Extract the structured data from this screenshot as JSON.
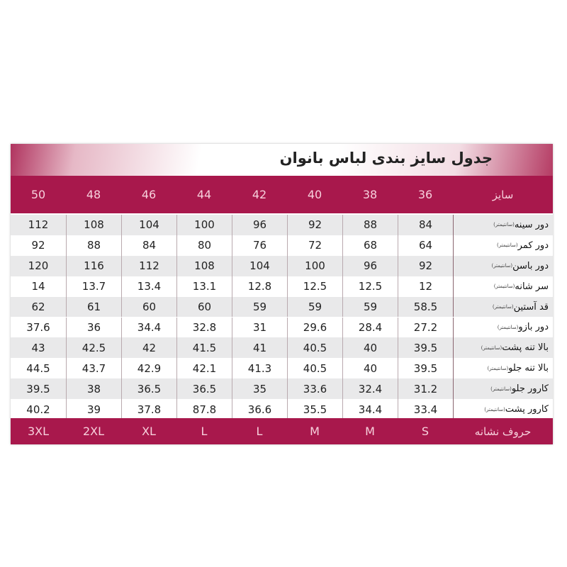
{
  "title": "جدول سایز بندی  لباس  بانوان",
  "colors": {
    "header": "#a8184c",
    "header_text": "#f7d0dc"
  },
  "header": {
    "label": "سایز",
    "sizes": [
      "36",
      "38",
      "40",
      "42",
      "44",
      "46",
      "48",
      "50"
    ]
  },
  "unit": "(سانتیمتر)",
  "rows": [
    {
      "label": "دور سینه",
      "values": [
        "84",
        "88",
        "92",
        "96",
        "100",
        "104",
        "108",
        "112"
      ]
    },
    {
      "label": "دور کمر",
      "values": [
        "64",
        "68",
        "72",
        "76",
        "80",
        "84",
        "88",
        "92"
      ]
    },
    {
      "label": "دور باسن",
      "values": [
        "92",
        "96",
        "100",
        "104",
        "108",
        "112",
        "116",
        "120"
      ]
    },
    {
      "label": "سر شانه",
      "values": [
        "12",
        "12.5",
        "12.5",
        "12.8",
        "13.1",
        "13.4",
        "13.7",
        "14"
      ]
    },
    {
      "label": "قد آستین",
      "values": [
        "58.5",
        "59",
        "59",
        "59",
        "60",
        "60",
        "61",
        "62"
      ]
    },
    {
      "label": "دور بازو",
      "values": [
        "27.2",
        "28.4",
        "29.6",
        "31",
        "32.8",
        "34.4",
        "36",
        "37.6"
      ]
    },
    {
      "label": "بالا تنه پشت",
      "values": [
        "39.5",
        "40",
        "40.5",
        "41",
        "41.5",
        "42",
        "42.5",
        "43"
      ]
    },
    {
      "label": "بالا تنه جلو",
      "values": [
        "39.5",
        "40",
        "40.5",
        "41.3",
        "42.1",
        "42.9",
        "43.7",
        "44.5"
      ]
    },
    {
      "label": "کارور جلو",
      "values": [
        "31.2",
        "32.4",
        "33.6",
        "35",
        "36.5",
        "36.5",
        "38",
        "39.5"
      ]
    },
    {
      "label": "کارور پشت",
      "values": [
        "33.4",
        "34.4",
        "35.5",
        "36.6",
        "87.8",
        "37.8",
        "39",
        "40.2"
      ]
    }
  ],
  "footer": {
    "label": "حروف  نشانه",
    "letters": [
      "S",
      "M",
      "M",
      "L",
      "L",
      "XL",
      "2XL",
      "3XL"
    ]
  }
}
